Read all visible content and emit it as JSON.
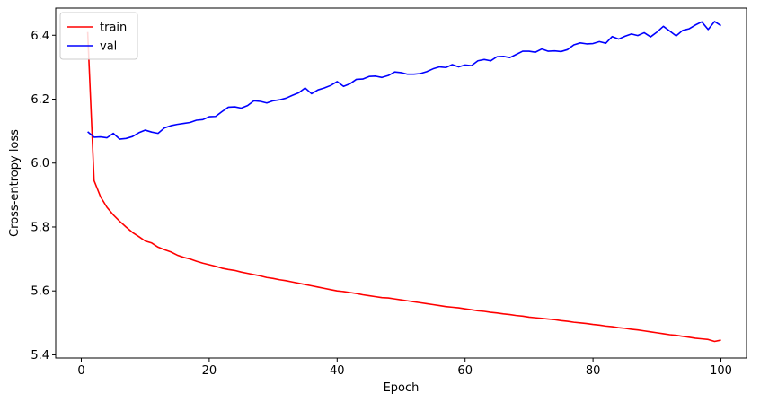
{
  "chart_data": {
    "type": "line",
    "title": "",
    "xlabel": "Epoch",
    "ylabel": "Cross-entropy loss",
    "xlim": [
      -4,
      104
    ],
    "ylim": [
      5.39,
      6.485
    ],
    "xticks": [
      0,
      20,
      40,
      60,
      80,
      100
    ],
    "yticks": [
      5.4,
      5.6,
      5.8,
      6.0,
      6.2,
      6.4
    ],
    "ytick_labels": [
      "5.4",
      "5.6",
      "5.8",
      "6.0",
      "6.2",
      "6.4"
    ],
    "grid": false,
    "legend_position": "top-left",
    "x": [
      1,
      2,
      3,
      4,
      5,
      6,
      7,
      8,
      9,
      10,
      11,
      12,
      13,
      14,
      15,
      16,
      17,
      18,
      19,
      20,
      21,
      22,
      23,
      24,
      25,
      26,
      27,
      28,
      29,
      30,
      31,
      32,
      33,
      34,
      35,
      36,
      37,
      38,
      39,
      40,
      41,
      42,
      43,
      44,
      45,
      46,
      47,
      48,
      49,
      50,
      51,
      52,
      53,
      54,
      55,
      56,
      57,
      58,
      59,
      60,
      61,
      62,
      63,
      64,
      65,
      66,
      67,
      68,
      69,
      70,
      71,
      72,
      73,
      74,
      75,
      76,
      77,
      78,
      79,
      80,
      81,
      82,
      83,
      84,
      85,
      86,
      87,
      88,
      89,
      90,
      91,
      92,
      93,
      94,
      95,
      96,
      97,
      98,
      99,
      100
    ],
    "series": [
      {
        "name": "train",
        "color": "#ff0000",
        "values": [
          6.41,
          5.945,
          5.895,
          5.862,
          5.838,
          5.818,
          5.8,
          5.783,
          5.77,
          5.756,
          5.75,
          5.737,
          5.729,
          5.722,
          5.712,
          5.705,
          5.7,
          5.693,
          5.687,
          5.682,
          5.677,
          5.671,
          5.667,
          5.664,
          5.659,
          5.655,
          5.651,
          5.647,
          5.642,
          5.639,
          5.635,
          5.632,
          5.628,
          5.624,
          5.62,
          5.616,
          5.612,
          5.608,
          5.604,
          5.6,
          5.598,
          5.595,
          5.592,
          5.588,
          5.585,
          5.582,
          5.579,
          5.578,
          5.575,
          5.572,
          5.569,
          5.566,
          5.563,
          5.56,
          5.557,
          5.554,
          5.551,
          5.549,
          5.547,
          5.544,
          5.541,
          5.538,
          5.536,
          5.533,
          5.531,
          5.528,
          5.526,
          5.523,
          5.521,
          5.518,
          5.516,
          5.514,
          5.512,
          5.51,
          5.507,
          5.505,
          5.502,
          5.5,
          5.498,
          5.495,
          5.493,
          5.49,
          5.488,
          5.485,
          5.483,
          5.48,
          5.478,
          5.475,
          5.472,
          5.469,
          5.466,
          5.463,
          5.461,
          5.458,
          5.455,
          5.452,
          5.45,
          5.448,
          5.442,
          5.446
        ]
      },
      {
        "name": "val",
        "color": "#0000ff",
        "values": [
          6.098,
          6.081,
          6.082,
          6.079,
          6.093,
          6.075,
          6.077,
          6.083,
          6.095,
          6.103,
          6.097,
          6.093,
          6.11,
          6.117,
          6.121,
          6.124,
          6.127,
          6.134,
          6.136,
          6.145,
          6.146,
          6.161,
          6.175,
          6.176,
          6.172,
          6.18,
          6.195,
          6.193,
          6.188,
          6.195,
          6.198,
          6.203,
          6.212,
          6.22,
          6.235,
          6.217,
          6.229,
          6.235,
          6.243,
          6.255,
          6.24,
          6.248,
          6.262,
          6.263,
          6.271,
          6.272,
          6.268,
          6.274,
          6.285,
          6.283,
          6.278,
          6.278,
          6.28,
          6.286,
          6.295,
          6.301,
          6.299,
          6.308,
          6.301,
          6.307,
          6.305,
          6.32,
          6.324,
          6.32,
          6.333,
          6.334,
          6.33,
          6.34,
          6.35,
          6.35,
          6.347,
          6.357,
          6.35,
          6.351,
          6.349,
          6.355,
          6.37,
          6.376,
          6.373,
          6.374,
          6.38,
          6.375,
          6.396,
          6.388,
          6.397,
          6.404,
          6.399,
          6.408,
          6.395,
          6.41,
          6.428,
          6.413,
          6.398,
          6.415,
          6.42,
          6.432,
          6.442,
          6.418,
          6.443,
          6.43
        ]
      }
    ]
  }
}
